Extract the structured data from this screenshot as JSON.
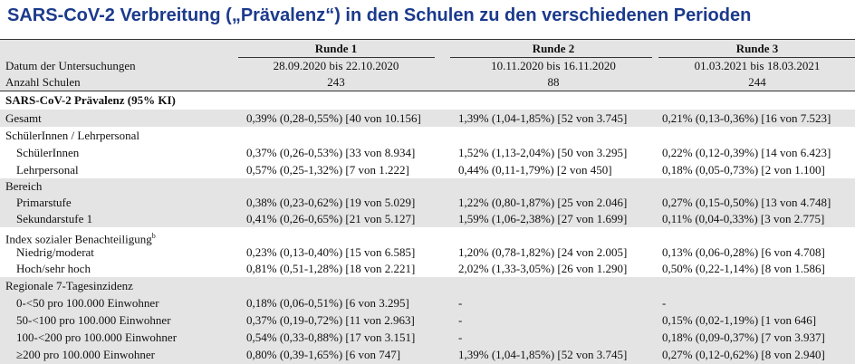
{
  "title": "SARS-CoV-2 Verbreitung („Prävalenz“) in den Schulen zu den verschiedenen Perioden",
  "table": {
    "header": [
      "Runde 1",
      "Runde 2",
      "Runde 3"
    ],
    "rows": [
      {
        "label": "Datum der Untersuchungen",
        "cells": [
          "28.09.2020 bis 22.10.2020",
          "10.11.2020 bis 16.11.2020",
          "01.03.2021 bis 18.03.2021"
        ]
      },
      {
        "label": "Anzahl Schulen",
        "cells": [
          243,
          88,
          244
        ]
      },
      {
        "label": "SARS-CoV-2 Prävalenz (95% KI)"
      },
      {
        "label": "Gesamt",
        "cells": [
          "0,39% (0,28-0,55%) [40 von 10.156]",
          "1,39% (1,04-1,85%) [52 von 3.745]",
          "0,21% (0,13-0,36%) [16 von 7.523]"
        ]
      },
      {
        "label": "SchülerInnen / Lehrpersonal"
      },
      {
        "label": "SchülerInnen",
        "cells": [
          "0,37% (0,26-0,53%) [33 von 8.934]",
          "1,52% (1,13-2,04%) [50 von 3.295]",
          "0,22% (0,12-0,39%) [14 von 6.423]"
        ]
      },
      {
        "label": "Lehrpersonal",
        "cells": [
          "0,57% (0,25-1,32%) [7 von 1.222]",
          "0,44% (0,11-1,79%) [2 von 450]",
          "0,18% (0,05-0,73%) [2 von 1.100]"
        ]
      },
      {
        "label": "Bereich"
      },
      {
        "label": "Primarstufe",
        "cells": [
          "0,38% (0,23-0,62%) [19 von 5.029]",
          "1,22% (0,80-1,87%) [25 von 2.046]",
          "0,27% (0,15-0,50%) [13 von 4.748]"
        ]
      },
      {
        "label": "Sekundarstufe 1",
        "cells": [
          "0,41% (0,26-0,65%) [21 von 5.127]",
          "1,59% (1,06-2,38%) [27 von 1.699]",
          "0,11% (0,04-0,33%) [3 von 2.775]"
        ]
      },
      {
        "label": "Index sozialer Benachteiligung",
        "footnote": "b"
      },
      {
        "label": "Niedrig/moderat",
        "cells": [
          "0,23% (0,13-0,40%) [15 von 6.585]",
          "1,20% (0,78-1,82%) [24 von 2.005]",
          "0,13% (0,06-0,28%) [6 von 4.708]"
        ]
      },
      {
        "label": "Hoch/sehr hoch",
        "cells": [
          "0,81% (0,51-1,28%) [18 von 2.221]",
          "2,02% (1,33-3,05%) [26 von 1.290]",
          "0,50% (0,22-1,14%) [8 von 1.586]"
        ]
      },
      {
        "label": "Regionale 7-Tagesinzidenz"
      },
      {
        "label": "0-<50 pro 100.000 Einwohner",
        "cells": [
          "0,18% (0,06-0,51%) [6 von 3.295]",
          "-",
          "-"
        ]
      },
      {
        "label": "50-<100 pro 100.000 Einwohner",
        "cells": [
          "0,37% (0,19-0,72%) [11 von 2.963]",
          "-",
          "0,15% (0,02-1,19%) [1 von 646]"
        ]
      },
      {
        "label": "100-<200 pro 100.000 Einwohner",
        "cells": [
          "0,54% (0,33-0,88%) [17 von 3.151]",
          "-",
          "0,18% (0,09-0,37%) [7 von 3.937]"
        ]
      },
      {
        "label": "≥200 pro 100.000 Einwohner",
        "cells": [
          "0,80% (0,39-1,65%) [6 von 747]",
          "1,39% (1,04-1,85%) [52 von 3.745]",
          "0,27% (0,12-0,62%) [8 von 2.940]"
        ]
      }
    ]
  }
}
